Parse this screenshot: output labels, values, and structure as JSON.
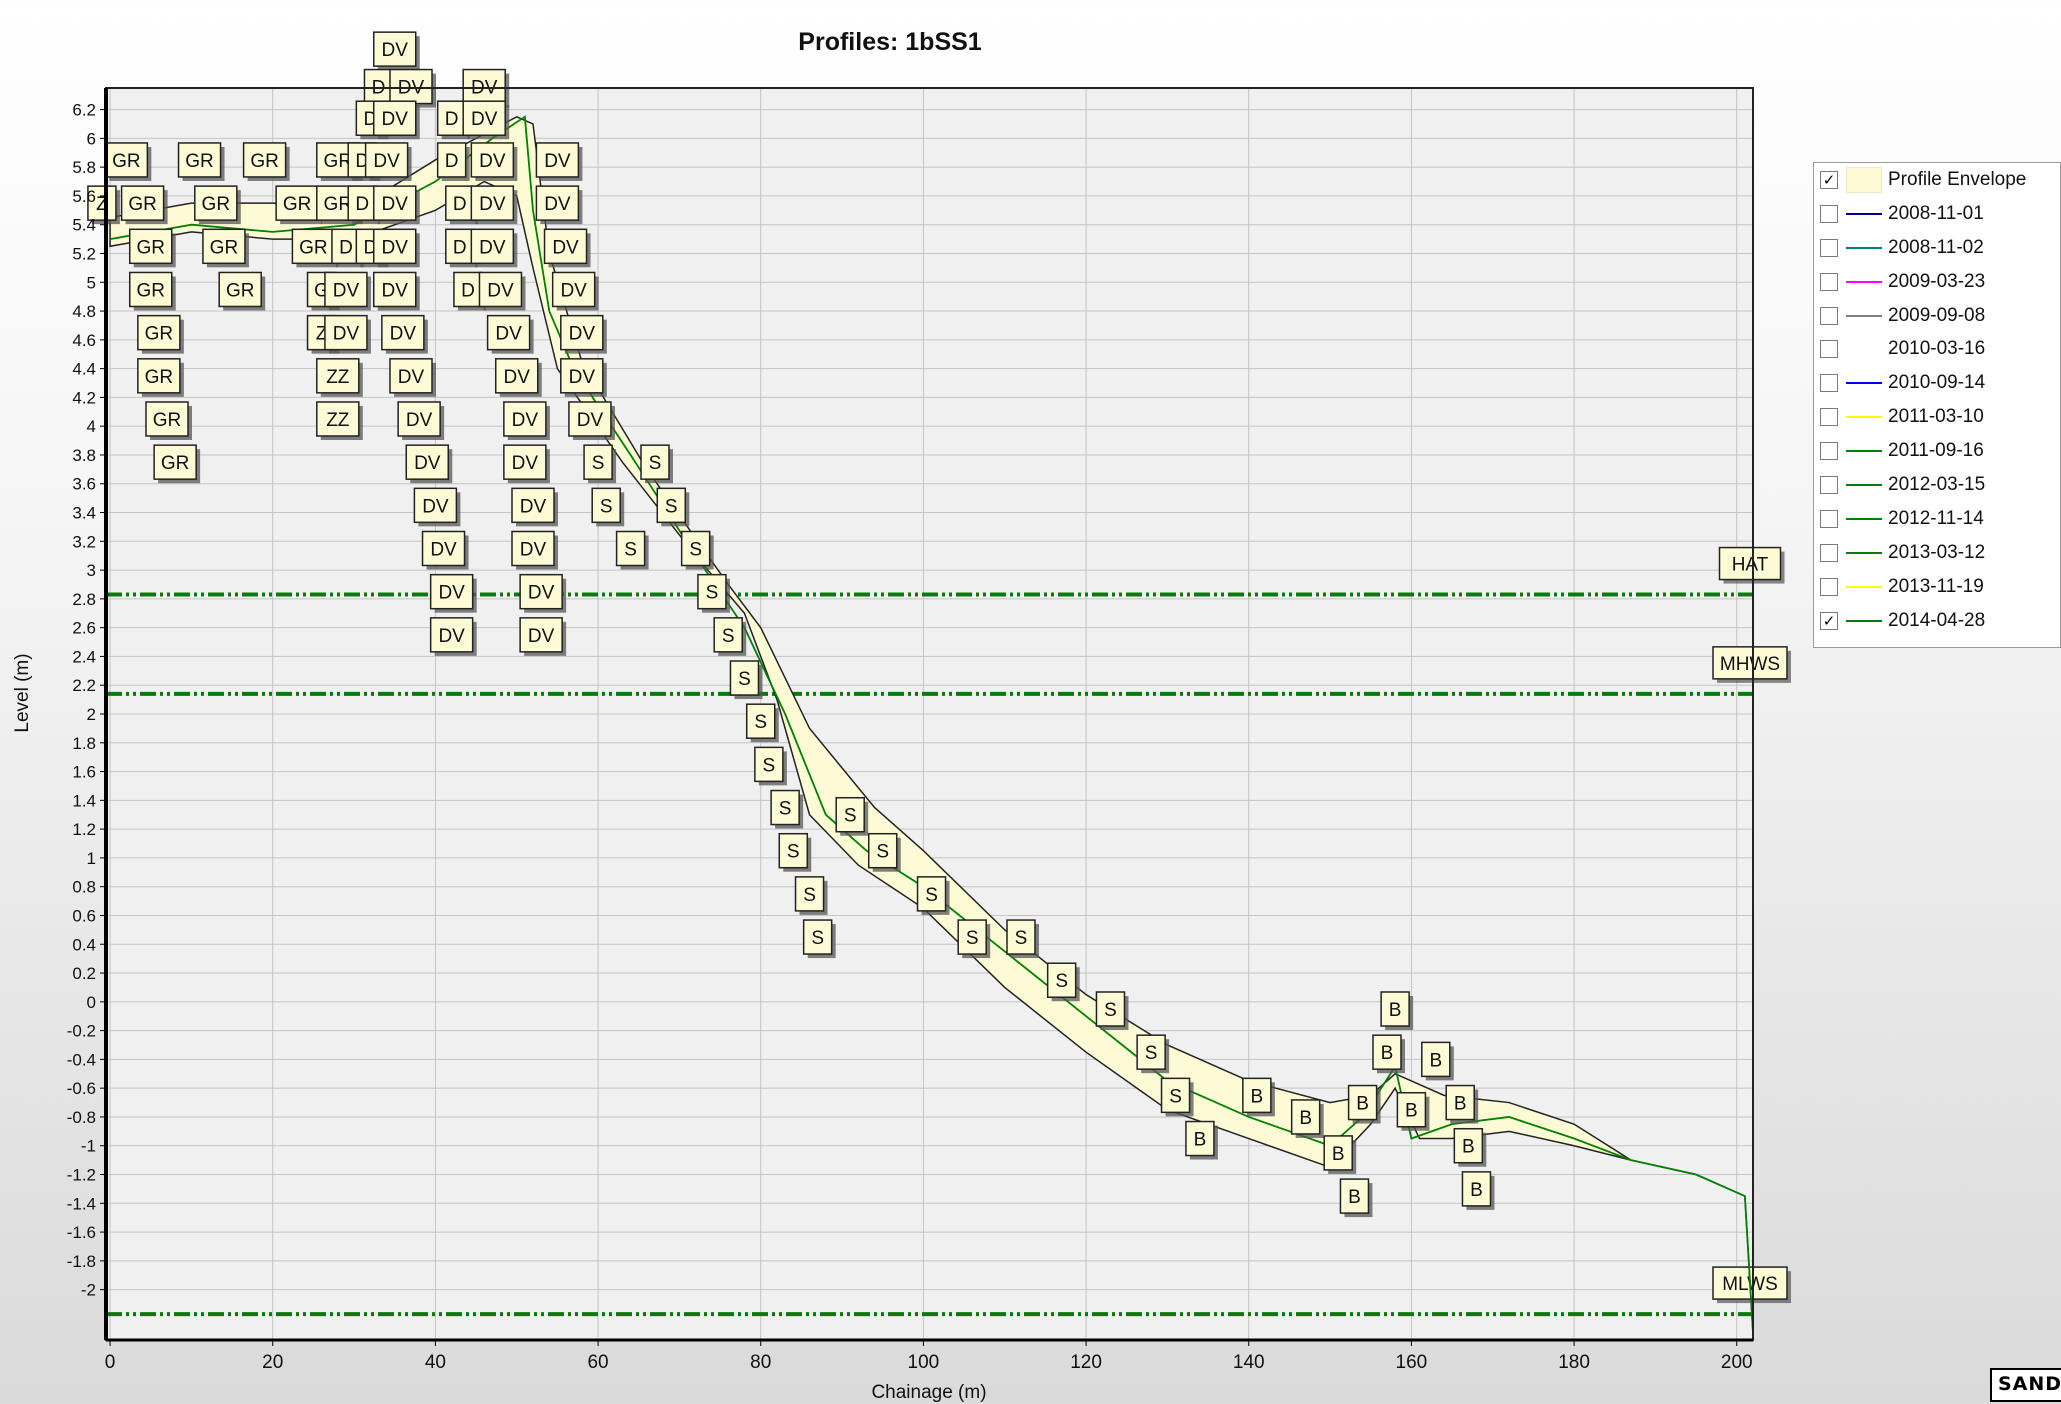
{
  "chart_data": {
    "type": "line",
    "title": "Profiles: 1bSS1",
    "xlabel": "Chainage (m)",
    "ylabel": "Level (m)",
    "xlim": [
      -0.5,
      202
    ],
    "ylim": [
      -2.35,
      6.35
    ],
    "x_ticks": [
      0,
      20,
      40,
      60,
      80,
      100,
      120,
      140,
      160,
      180,
      200
    ],
    "y_ticks": [
      6.2,
      6,
      5.8,
      5.6,
      5.4,
      5.2,
      5,
      4.8,
      4.6,
      4.4,
      4.2,
      4,
      3.8,
      3.6,
      3.4,
      3.2,
      3,
      2.8,
      2.6,
      2.4,
      2.2,
      2,
      1.8,
      1.6,
      1.4,
      1.2,
      1,
      0.8,
      0.6,
      0.4,
      0.2,
      0,
      -0.2,
      -0.4,
      -0.6,
      -0.8,
      -1,
      -1.2,
      -1.4,
      -1.6,
      -1.8,
      -2
    ],
    "grid": true,
    "legend_position": "right",
    "envelope": {
      "name": "Profile Envelope",
      "upper": [
        [
          0,
          5.45
        ],
        [
          10,
          5.55
        ],
        [
          20,
          5.55
        ],
        [
          30,
          5.5
        ],
        [
          40,
          5.85
        ],
        [
          50,
          6.15
        ],
        [
          52,
          6.1
        ],
        [
          54,
          5.2
        ],
        [
          58,
          4.45
        ],
        [
          66,
          3.7
        ],
        [
          76,
          2.9
        ],
        [
          80,
          2.6
        ],
        [
          86,
          1.9
        ],
        [
          94,
          1.35
        ],
        [
          100,
          1.05
        ],
        [
          110,
          0.5
        ],
        [
          120,
          0.05
        ],
        [
          130,
          -0.3
        ],
        [
          140,
          -0.55
        ],
        [
          150,
          -0.7
        ],
        [
          155,
          -0.65
        ],
        [
          158,
          -0.5
        ],
        [
          160,
          -0.55
        ],
        [
          164,
          -0.65
        ],
        [
          172,
          -0.7
        ],
        [
          180,
          -0.85
        ],
        [
          187,
          -1.1
        ],
        [
          195,
          -1.2
        ],
        [
          201,
          -1.35
        ],
        [
          202,
          -2.3
        ]
      ],
      "lower": [
        [
          0,
          5.25
        ],
        [
          10,
          5.35
        ],
        [
          20,
          5.3
        ],
        [
          30,
          5.3
        ],
        [
          40,
          5.5
        ],
        [
          46,
          5.7
        ],
        [
          50,
          5.6
        ],
        [
          52,
          5.1
        ],
        [
          55,
          4.4
        ],
        [
          63,
          3.75
        ],
        [
          72,
          3.1
        ],
        [
          78,
          2.7
        ],
        [
          82,
          2.1
        ],
        [
          86,
          1.3
        ],
        [
          92,
          0.95
        ],
        [
          100,
          0.65
        ],
        [
          110,
          0.1
        ],
        [
          120,
          -0.35
        ],
        [
          130,
          -0.75
        ],
        [
          140,
          -0.95
        ],
        [
          150,
          -1.15
        ],
        [
          155,
          -0.85
        ],
        [
          158,
          -0.6
        ],
        [
          161,
          -0.95
        ],
        [
          165,
          -0.95
        ],
        [
          172,
          -0.9
        ],
        [
          180,
          -1.0
        ],
        [
          187,
          -1.1
        ],
        [
          195,
          -1.2
        ],
        [
          201,
          -1.35
        ],
        [
          202,
          -2.3
        ]
      ]
    },
    "tide_lines": [
      {
        "name": "HAT",
        "value": 2.83
      },
      {
        "name": "MHWS",
        "value": 2.14
      },
      {
        "name": "MLWS",
        "value": -2.17
      }
    ],
    "series": [
      {
        "name": "2008-11-01",
        "color": "#000080",
        "visible": false
      },
      {
        "name": "2008-11-02",
        "color": "#008080",
        "visible": false
      },
      {
        "name": "2009-03-23",
        "color": "#ff00ff",
        "visible": false
      },
      {
        "name": "2009-09-08",
        "color": "#808080",
        "visible": false
      },
      {
        "name": "2010-03-16",
        "color": "#ffffff",
        "visible": false
      },
      {
        "name": "2010-09-14",
        "color": "#0000ff",
        "visible": false
      },
      {
        "name": "2011-03-10",
        "color": "#ffff00",
        "visible": false
      },
      {
        "name": "2011-09-16",
        "color": "#008000",
        "visible": false
      },
      {
        "name": "2012-03-15",
        "color": "#008000",
        "visible": false
      },
      {
        "name": "2012-11-14",
        "color": "#008000",
        "visible": false
      },
      {
        "name": "2013-03-12",
        "color": "#008000",
        "visible": false
      },
      {
        "name": "2013-11-19",
        "color": "#ffff00",
        "visible": false
      },
      {
        "name": "2014-04-28",
        "color": "#008000",
        "visible": true,
        "points": [
          [
            0,
            5.3
          ],
          [
            10,
            5.4
          ],
          [
            20,
            5.35
          ],
          [
            30,
            5.4
          ],
          [
            40,
            5.7
          ],
          [
            47,
            6.0
          ],
          [
            51,
            6.15
          ],
          [
            52,
            5.5
          ],
          [
            54,
            4.8
          ],
          [
            57,
            4.4
          ],
          [
            64,
            3.8
          ],
          [
            72,
            3.1
          ],
          [
            78,
            2.6
          ],
          [
            83,
            2.0
          ],
          [
            88,
            1.3
          ],
          [
            93,
            1.05
          ],
          [
            100,
            0.8
          ],
          [
            110,
            0.35
          ],
          [
            120,
            -0.1
          ],
          [
            130,
            -0.55
          ],
          [
            140,
            -0.8
          ],
          [
            150,
            -1.0
          ],
          [
            154,
            -0.8
          ],
          [
            158,
            -0.45
          ],
          [
            160,
            -0.95
          ],
          [
            165,
            -0.85
          ],
          [
            172,
            -0.8
          ],
          [
            180,
            -0.95
          ],
          [
            187,
            -1.1
          ],
          [
            195,
            -1.2
          ],
          [
            201,
            -1.35
          ],
          [
            202,
            -2.3
          ]
        ]
      }
    ],
    "envelope_checked": true,
    "point_labels": [
      {
        "x": 35,
        "y": 6.62,
        "text": "DV"
      },
      {
        "x": 33,
        "y": 6.36,
        "text": "D"
      },
      {
        "x": 37,
        "y": 6.36,
        "text": "DV"
      },
      {
        "x": 46,
        "y": 6.36,
        "text": "DV"
      },
      {
        "x": 32,
        "y": 6.14,
        "text": "D"
      },
      {
        "x": 35,
        "y": 6.14,
        "text": "DV"
      },
      {
        "x": 42,
        "y": 6.14,
        "text": "D"
      },
      {
        "x": 46,
        "y": 6.14,
        "text": "DV"
      },
      {
        "x": 2,
        "y": 5.85,
        "text": "GR"
      },
      {
        "x": 11,
        "y": 5.85,
        "text": "GR"
      },
      {
        "x": 19,
        "y": 5.85,
        "text": "GR"
      },
      {
        "x": 28,
        "y": 5.85,
        "text": "GR"
      },
      {
        "x": 31,
        "y": 5.85,
        "text": "D"
      },
      {
        "x": 34,
        "y": 5.85,
        "text": "DV"
      },
      {
        "x": 42,
        "y": 5.85,
        "text": "D"
      },
      {
        "x": 47,
        "y": 5.85,
        "text": "DV"
      },
      {
        "x": 55,
        "y": 5.85,
        "text": "DV"
      },
      {
        "x": -1,
        "y": 5.55,
        "text": "Z"
      },
      {
        "x": 4,
        "y": 5.55,
        "text": "GR"
      },
      {
        "x": 13,
        "y": 5.55,
        "text": "GR"
      },
      {
        "x": 23,
        "y": 5.55,
        "text": "GR"
      },
      {
        "x": 28,
        "y": 5.55,
        "text": "GR"
      },
      {
        "x": 31,
        "y": 5.55,
        "text": "D"
      },
      {
        "x": 35,
        "y": 5.55,
        "text": "DV"
      },
      {
        "x": 43,
        "y": 5.55,
        "text": "D"
      },
      {
        "x": 47,
        "y": 5.55,
        "text": "DV"
      },
      {
        "x": 55,
        "y": 5.55,
        "text": "DV"
      },
      {
        "x": 5,
        "y": 5.25,
        "text": "GR"
      },
      {
        "x": 14,
        "y": 5.25,
        "text": "GR"
      },
      {
        "x": 25,
        "y": 5.25,
        "text": "GR"
      },
      {
        "x": 29,
        "y": 5.25,
        "text": "D"
      },
      {
        "x": 32,
        "y": 5.25,
        "text": "D"
      },
      {
        "x": 35,
        "y": 5.25,
        "text": "DV"
      },
      {
        "x": 43,
        "y": 5.25,
        "text": "D"
      },
      {
        "x": 47,
        "y": 5.25,
        "text": "DV"
      },
      {
        "x": 56,
        "y": 5.25,
        "text": "DV"
      },
      {
        "x": 5,
        "y": 4.95,
        "text": "GR"
      },
      {
        "x": 16,
        "y": 4.95,
        "text": "GR"
      },
      {
        "x": 26,
        "y": 4.95,
        "text": "G"
      },
      {
        "x": 29,
        "y": 4.95,
        "text": "DV"
      },
      {
        "x": 35,
        "y": 4.95,
        "text": "DV"
      },
      {
        "x": 44,
        "y": 4.95,
        "text": "D"
      },
      {
        "x": 48,
        "y": 4.95,
        "text": "DV"
      },
      {
        "x": 57,
        "y": 4.95,
        "text": "DV"
      },
      {
        "x": 6,
        "y": 4.65,
        "text": "GR"
      },
      {
        "x": 26,
        "y": 4.65,
        "text": "Z"
      },
      {
        "x": 29,
        "y": 4.65,
        "text": "DV"
      },
      {
        "x": 36,
        "y": 4.65,
        "text": "DV"
      },
      {
        "x": 49,
        "y": 4.65,
        "text": "DV"
      },
      {
        "x": 58,
        "y": 4.65,
        "text": "DV"
      },
      {
        "x": 6,
        "y": 4.35,
        "text": "GR"
      },
      {
        "x": 28,
        "y": 4.35,
        "text": "ZZ"
      },
      {
        "x": 37,
        "y": 4.35,
        "text": "DV"
      },
      {
        "x": 50,
        "y": 4.35,
        "text": "DV"
      },
      {
        "x": 58,
        "y": 4.35,
        "text": "DV"
      },
      {
        "x": 7,
        "y": 4.05,
        "text": "GR"
      },
      {
        "x": 28,
        "y": 4.05,
        "text": "ZZ"
      },
      {
        "x": 38,
        "y": 4.05,
        "text": "DV"
      },
      {
        "x": 51,
        "y": 4.05,
        "text": "DV"
      },
      {
        "x": 59,
        "y": 4.05,
        "text": "DV"
      },
      {
        "x": 8,
        "y": 3.75,
        "text": "GR"
      },
      {
        "x": 39,
        "y": 3.75,
        "text": "DV"
      },
      {
        "x": 51,
        "y": 3.75,
        "text": "DV"
      },
      {
        "x": 60,
        "y": 3.75,
        "text": "S"
      },
      {
        "x": 67,
        "y": 3.75,
        "text": "S"
      },
      {
        "x": 40,
        "y": 3.45,
        "text": "DV"
      },
      {
        "x": 52,
        "y": 3.45,
        "text": "DV"
      },
      {
        "x": 61,
        "y": 3.45,
        "text": "S"
      },
      {
        "x": 69,
        "y": 3.45,
        "text": "S"
      },
      {
        "x": 41,
        "y": 3.15,
        "text": "DV"
      },
      {
        "x": 52,
        "y": 3.15,
        "text": "DV"
      },
      {
        "x": 64,
        "y": 3.15,
        "text": "S"
      },
      {
        "x": 72,
        "y": 3.15,
        "text": "S"
      },
      {
        "x": 42,
        "y": 2.85,
        "text": "DV"
      },
      {
        "x": 53,
        "y": 2.85,
        "text": "DV"
      },
      {
        "x": 74,
        "y": 2.85,
        "text": "S"
      },
      {
        "x": 42,
        "y": 2.55,
        "text": "DV"
      },
      {
        "x": 53,
        "y": 2.55,
        "text": "DV"
      },
      {
        "x": 76,
        "y": 2.55,
        "text": "S"
      },
      {
        "x": 78,
        "y": 2.25,
        "text": "S"
      },
      {
        "x": 80,
        "y": 1.95,
        "text": "S"
      },
      {
        "x": 81,
        "y": 1.65,
        "text": "S"
      },
      {
        "x": 83,
        "y": 1.35,
        "text": "S"
      },
      {
        "x": 91,
        "y": 1.3,
        "text": "S"
      },
      {
        "x": 84,
        "y": 1.05,
        "text": "S"
      },
      {
        "x": 95,
        "y": 1.05,
        "text": "S"
      },
      {
        "x": 86,
        "y": 0.75,
        "text": "S"
      },
      {
        "x": 101,
        "y": 0.75,
        "text": "S"
      },
      {
        "x": 87,
        "y": 0.45,
        "text": "S"
      },
      {
        "x": 106,
        "y": 0.45,
        "text": "S"
      },
      {
        "x": 112,
        "y": 0.45,
        "text": "S"
      },
      {
        "x": 117,
        "y": 0.15,
        "text": "S"
      },
      {
        "x": 123,
        "y": -0.05,
        "text": "S"
      },
      {
        "x": 128,
        "y": -0.35,
        "text": "S"
      },
      {
        "x": 131,
        "y": -0.65,
        "text": "S"
      },
      {
        "x": 141,
        "y": -0.65,
        "text": "B"
      },
      {
        "x": 134,
        "y": -0.95,
        "text": "B"
      },
      {
        "x": 147,
        "y": -0.8,
        "text": "B"
      },
      {
        "x": 154,
        "y": -0.7,
        "text": "B"
      },
      {
        "x": 158,
        "y": -0.05,
        "text": "B"
      },
      {
        "x": 157,
        "y": -0.35,
        "text": "B"
      },
      {
        "x": 163,
        "y": -0.4,
        "text": "B"
      },
      {
        "x": 160,
        "y": -0.75,
        "text": "B"
      },
      {
        "x": 166,
        "y": -0.7,
        "text": "B"
      },
      {
        "x": 151,
        "y": -1.05,
        "text": "B"
      },
      {
        "x": 167,
        "y": -1.0,
        "text": "B"
      },
      {
        "x": 153,
        "y": -1.35,
        "text": "B"
      },
      {
        "x": 168,
        "y": -1.3,
        "text": "B"
      }
    ]
  },
  "legend": {
    "envelope_label": "Profile Envelope",
    "items": [
      {
        "label": "2008-11-01",
        "color": "#000080",
        "checked": false
      },
      {
        "label": "2008-11-02",
        "color": "#008080",
        "checked": false
      },
      {
        "label": "2009-03-23",
        "color": "#ff00ff",
        "checked": false
      },
      {
        "label": "2009-09-08",
        "color": "#808080",
        "checked": false
      },
      {
        "label": "2010-03-16",
        "color": "#ffffff",
        "checked": false
      },
      {
        "label": "2010-09-14",
        "color": "#0000ff",
        "checked": false
      },
      {
        "label": "2011-03-10",
        "color": "#ffff00",
        "checked": false
      },
      {
        "label": "2011-09-16",
        "color": "#008000",
        "checked": false
      },
      {
        "label": "2012-03-15",
        "color": "#008000",
        "checked": false
      },
      {
        "label": "2012-11-14",
        "color": "#008000",
        "checked": false
      },
      {
        "label": "2013-03-12",
        "color": "#008000",
        "checked": false
      },
      {
        "label": "2013-11-19",
        "color": "#ffff00",
        "checked": false
      },
      {
        "label": "2014-04-28",
        "color": "#008000",
        "checked": true
      }
    ]
  },
  "logo_text": "SANDS"
}
